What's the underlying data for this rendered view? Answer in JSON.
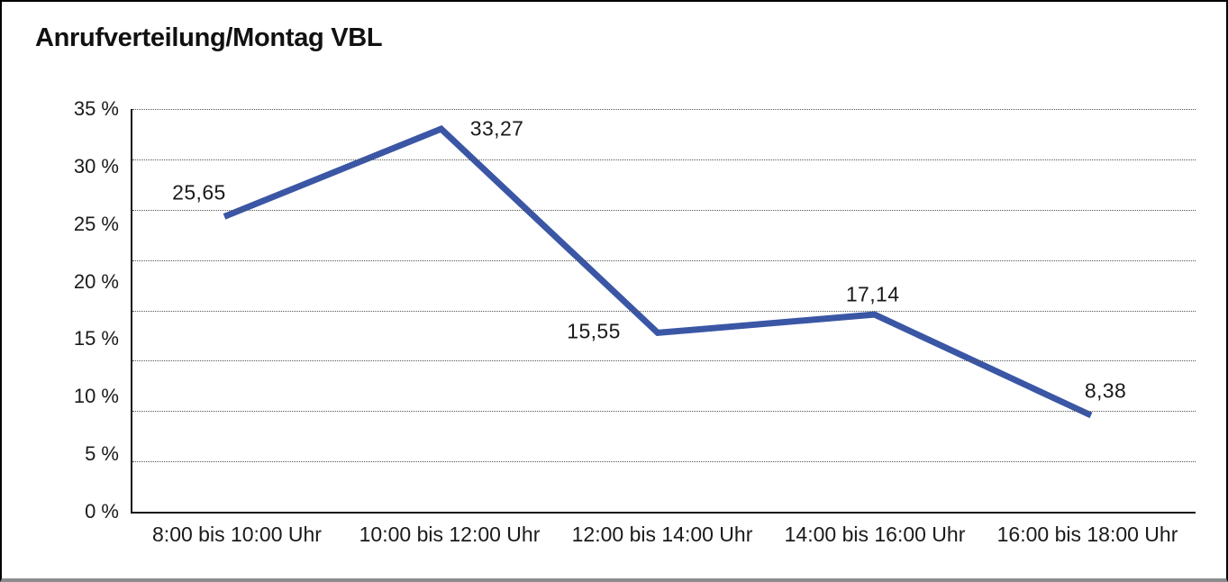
{
  "title": "Anrufverteilung/Montag VBL",
  "chart_data": {
    "type": "line",
    "title": "Anrufverteilung/Montag VBL",
    "categories": [
      "8:00 bis 10:00 Uhr",
      "10:00 bis 12:00 Uhr",
      "12:00 bis 14:00 Uhr",
      "14:00 bis 16:00 Uhr",
      "16:00 bis 18:00 Uhr"
    ],
    "values": [
      25.65,
      33.27,
      15.55,
      17.14,
      8.38
    ],
    "point_labels": [
      "25,65",
      "33,27",
      "15,55",
      "17,14",
      "8,38"
    ],
    "y_ticks": [
      "35 %",
      "30 %",
      "25 %",
      "20 %",
      "15 %",
      "10 %",
      "5 %",
      "0 %"
    ],
    "ylim": [
      0,
      35
    ],
    "xlabel": "",
    "ylabel": "",
    "grid": "horizontal-dotted",
    "legend_position": "none",
    "line_color": "#3A56A5",
    "axis_color": "#111111",
    "text_color": "#1a1a1a"
  }
}
